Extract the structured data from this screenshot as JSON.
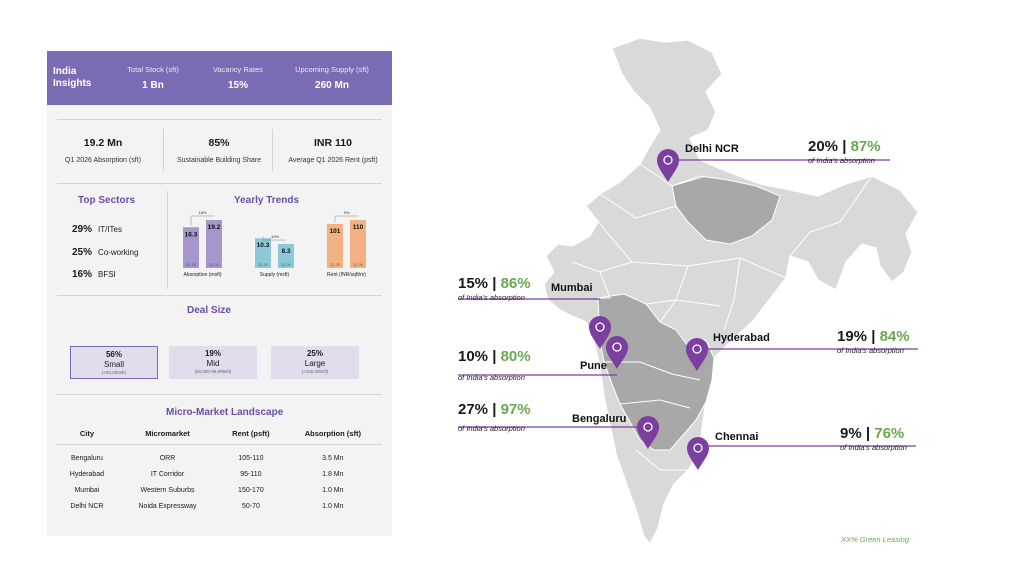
{
  "insights": {
    "title": "India Insights",
    "stats": [
      {
        "label": "Total Stock (sft)",
        "value": "1 Bn"
      },
      {
        "label": "Vacancy Rates",
        "value": "15%"
      },
      {
        "label": "Upcoming Supply (sft)",
        "value": "260 Mn"
      }
    ]
  },
  "kpis": [
    {
      "value": "19.2 Mn",
      "label": "Q1 2026 Absorption (sft)"
    },
    {
      "value": "85%",
      "label": "Sustainable Building Share"
    },
    {
      "value": "INR 110",
      "label": "Average Q1 2026 Rent (psft)"
    }
  ],
  "top_sectors": {
    "title": "Top Sectors",
    "items": [
      {
        "pct": "29%",
        "name": "IT/ITes"
      },
      {
        "pct": "25%",
        "name": "Co-working"
      },
      {
        "pct": "16%",
        "name": "BFSI"
      }
    ]
  },
  "yearly_trends": {
    "title": "Yearly Trends"
  },
  "chart_data": {
    "type": "bar",
    "title": "Yearly Trends",
    "groups": [
      {
        "name": "Absorption (msft)",
        "color": "#a596cc",
        "change": "18%",
        "bars": [
          {
            "period": "Q1 25",
            "value": 16.3
          },
          {
            "period": "Q1 26",
            "value": 19.2
          }
        ]
      },
      {
        "name": "Supply (msft)",
        "color": "#8cc8d7",
        "change": "-19%",
        "bars": [
          {
            "period": "Q1 25",
            "value": 10.3
          },
          {
            "period": "Q1 26",
            "value": 8.3
          }
        ]
      },
      {
        "name": "Rent (INR/sqft/m)",
        "color": "#f3b183",
        "change": "9%",
        "bars": [
          {
            "period": "Q1 25",
            "value": 101
          },
          {
            "period": "Q1 26",
            "value": 110
          }
        ]
      }
    ]
  },
  "deal_size": {
    "title": "Deal Size",
    "items": [
      {
        "pct": "56%",
        "label": "Small",
        "range": "(<50,000sft)",
        "selected": true
      },
      {
        "pct": "19%",
        "label": "Mid",
        "range": "(50,000-99,999sft)",
        "selected": false
      },
      {
        "pct": "25%",
        "label": "Large",
        "range": "(>100,000sft)",
        "selected": false
      }
    ]
  },
  "micro_market": {
    "title": "Micro-Market Landscape",
    "columns": [
      "City",
      "Micromarket",
      "Rent (psft)",
      "Absorption (sft)"
    ],
    "rows": [
      [
        "Bengaluru",
        "ORR",
        "105-110",
        "3.5 Mn"
      ],
      [
        "Hyderabad",
        "IT Corridor",
        "95-110",
        "1.8 Mn"
      ],
      [
        "Mumbai",
        "Western Suburbs",
        "150-170",
        "1.0 Mn"
      ],
      [
        "Delhi NCR",
        "Noida Expressway",
        "50-70",
        "1.0 Mn"
      ]
    ]
  },
  "cities": [
    {
      "name": "Delhi NCR",
      "share": "20%",
      "green": "87%",
      "note": "of India's absorption"
    },
    {
      "name": "Mumbai",
      "share": "15%",
      "green": "86%",
      "note": "of India's absorption"
    },
    {
      "name": "Pune",
      "share": "10%",
      "green": "80%",
      "note": "of India's absorption"
    },
    {
      "name": "Hyderabad",
      "share": "19%",
      "green": "84%",
      "note": "of India's absorption"
    },
    {
      "name": "Bengaluru",
      "share": "27%",
      "green": "97%",
      "note": "of India's absorption"
    },
    {
      "name": "Chennai",
      "share": "9%",
      "green": "76%",
      "note": "of India's absorption"
    }
  ],
  "footnote": "XX% Green Leasing",
  "colors": {
    "accent": "#7b6bb4",
    "pin": "#7b3fa0",
    "green": "#6aa84f",
    "map_light": "#d9d9d9",
    "map_dark": "#a8a8a8"
  }
}
